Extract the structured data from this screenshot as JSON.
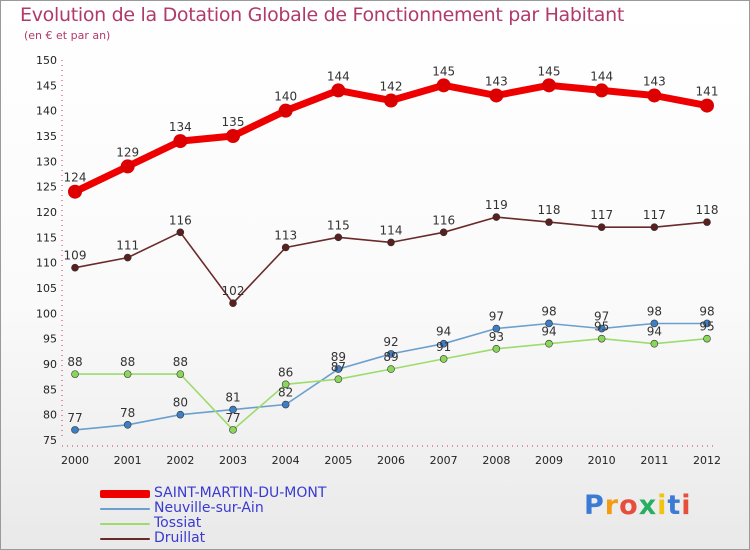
{
  "title": "Evolution de la Dotation Globale de Fonctionnement par Habitant",
  "subtitle": "(en € et par an)",
  "logo": {
    "letters": [
      "P",
      "r",
      "o",
      "x",
      "i",
      "t",
      "i"
    ],
    "colors": [
      "#3b7bd4",
      "#f39c12",
      "#e74c3c",
      "#27ae60",
      "#f1c40f",
      "#3b7bd4",
      "#e74c3c"
    ]
  },
  "chart_data": {
    "type": "line",
    "title": "Evolution de la Dotation Globale de Fonctionnement par Habitant",
    "subtitle": "(en € et par an)",
    "xlabel": "",
    "ylabel": "",
    "categories": [
      "2000",
      "2001",
      "2002",
      "2003",
      "2004",
      "2005",
      "2006",
      "2007",
      "2008",
      "2009",
      "2010",
      "2011",
      "2012"
    ],
    "ylim": [
      75,
      150
    ],
    "yticks": [
      75,
      80,
      85,
      90,
      95,
      100,
      105,
      110,
      115,
      120,
      125,
      130,
      135,
      140,
      145,
      150
    ],
    "grid": false,
    "legend_position": "bottom-left",
    "series": [
      {
        "name": "SAINT-MARTIN-DU-MONT",
        "color": "#ee0000",
        "marker_color": "#dd0000",
        "values": [
          124,
          129,
          134,
          135,
          140,
          144,
          142,
          145,
          143,
          145,
          144,
          143,
          141
        ]
      },
      {
        "name": "Neuville-sur-Ain",
        "color": "#6a9fd0",
        "marker_color": "#3d7fc4",
        "values": [
          77,
          78,
          80,
          81,
          82,
          89,
          92,
          94,
          97,
          98,
          97,
          98,
          98
        ]
      },
      {
        "name": "Tossiat",
        "color": "#9ddc6c",
        "marker_color": "#8ad65a",
        "values": [
          88,
          88,
          88,
          77,
          86,
          87,
          89,
          91,
          93,
          94,
          95,
          94,
          95
        ]
      },
      {
        "name": "Druillat",
        "color": "#6b2a2a",
        "marker_color": "#5a1f1f",
        "values": [
          109,
          111,
          116,
          102,
          113,
          115,
          114,
          116,
          119,
          118,
          117,
          117,
          118
        ]
      }
    ]
  }
}
